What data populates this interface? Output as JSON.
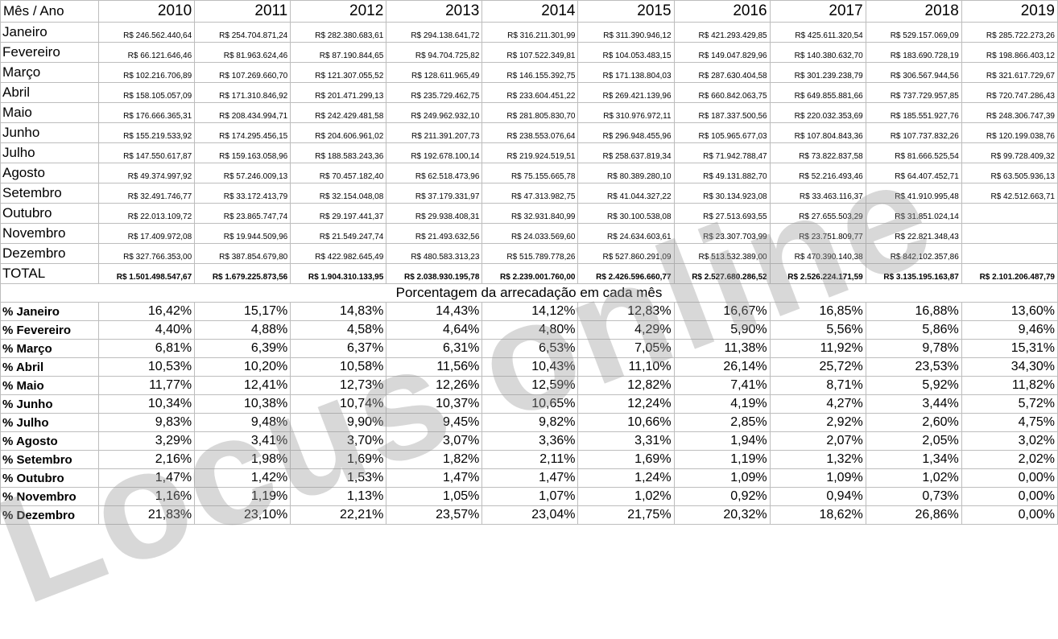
{
  "header_label": "Mês / Ano",
  "years": [
    "2010",
    "2011",
    "2012",
    "2013",
    "2014",
    "2015",
    "2016",
    "2017",
    "2018",
    "2019"
  ],
  "rows": [
    {
      "label": "Janeiro",
      "values": [
        "R$ 246.562.440,64",
        "R$ 254.704.871,24",
        "R$ 282.380.683,61",
        "R$ 294.138.641,72",
        "R$ 316.211.301,99",
        "R$ 311.390.946,12",
        "R$ 421.293.429,85",
        "R$ 425.611.320,54",
        "R$ 529.157.069,09",
        "R$ 285.722.273,26"
      ]
    },
    {
      "label": "Fevereiro",
      "values": [
        "R$ 66.121.646,46",
        "R$ 81.963.624,46",
        "R$ 87.190.844,65",
        "R$ 94.704.725,82",
        "R$ 107.522.349,81",
        "R$ 104.053.483,15",
        "R$ 149.047.829,96",
        "R$ 140.380.632,70",
        "R$ 183.690.728,19",
        "R$ 198.866.403,12"
      ]
    },
    {
      "label": "Março",
      "values": [
        "R$ 102.216.706,89",
        "R$ 107.269.660,70",
        "R$ 121.307.055,52",
        "R$ 128.611.965,49",
        "R$ 146.155.392,75",
        "R$ 171.138.804,03",
        "R$ 287.630.404,58",
        "R$ 301.239.238,79",
        "R$ 306.567.944,56",
        "R$ 321.617.729,67"
      ]
    },
    {
      "label": "Abril",
      "values": [
        "R$ 158.105.057,09",
        "R$ 171.310.846,92",
        "R$ 201.471.299,13",
        "R$ 235.729.462,75",
        "R$ 233.604.451,22",
        "R$ 269.421.139,96",
        "R$ 660.842.063,75",
        "R$ 649.855.881,66",
        "R$ 737.729.957,85",
        "R$ 720.747.286,43"
      ]
    },
    {
      "label": "Maio",
      "values": [
        "R$ 176.666.365,31",
        "R$ 208.434.994,71",
        "R$ 242.429.481,58",
        "R$ 249.962.932,10",
        "R$ 281.805.830,70",
        "R$ 310.976.972,11",
        "R$ 187.337.500,56",
        "R$ 220.032.353,69",
        "R$ 185.551.927,76",
        "R$ 248.306.747,39"
      ]
    },
    {
      "label": "Junho",
      "values": [
        "R$ 155.219.533,92",
        "R$ 174.295.456,15",
        "R$ 204.606.961,02",
        "R$ 211.391.207,73",
        "R$ 238.553.076,64",
        "R$ 296.948.455,96",
        "R$ 105.965.677,03",
        "R$ 107.804.843,36",
        "R$ 107.737.832,26",
        "R$ 120.199.038,76"
      ]
    },
    {
      "label": "Julho",
      "values": [
        "R$ 147.550.617,87",
        "R$ 159.163.058,96",
        "R$ 188.583.243,36",
        "R$ 192.678.100,14",
        "R$ 219.924.519,51",
        "R$ 258.637.819,34",
        "R$ 71.942.788,47",
        "R$ 73.822.837,58",
        "R$ 81.666.525,54",
        "R$ 99.728.409,32"
      ]
    },
    {
      "label": "Agosto",
      "values": [
        "R$ 49.374.997,92",
        "R$ 57.246.009,13",
        "R$ 70.457.182,40",
        "R$ 62.518.473,96",
        "R$ 75.155.665,78",
        "R$ 80.389.280,10",
        "R$ 49.131.882,70",
        "R$ 52.216.493,46",
        "R$ 64.407.452,71",
        "R$ 63.505.936,13"
      ]
    },
    {
      "label": "Setembro",
      "values": [
        "R$ 32.491.746,77",
        "R$ 33.172.413,79",
        "R$ 32.154.048,08",
        "R$ 37.179.331,97",
        "R$ 47.313.982,75",
        "R$ 41.044.327,22",
        "R$ 30.134.923,08",
        "R$ 33.463.116,37",
        "R$ 41.910.995,48",
        "R$ 42.512.663,71"
      ]
    },
    {
      "label": "Outubro",
      "values": [
        "R$ 22.013.109,72",
        "R$ 23.865.747,74",
        "R$ 29.197.441,37",
        "R$ 29.938.408,31",
        "R$ 32.931.840,99",
        "R$ 30.100.538,08",
        "R$ 27.513.693,55",
        "R$ 27.655.503,29",
        "R$ 31.851.024,14",
        ""
      ]
    },
    {
      "label": "Novembro",
      "values": [
        "R$ 17.409.972,08",
        "R$ 19.944.509,96",
        "R$ 21.549.247,74",
        "R$ 21.493.632,56",
        "R$ 24.033.569,60",
        "R$ 24.634.603,61",
        "R$ 23.307.703,99",
        "R$ 23.751.809,77",
        "R$ 22.821.348,43",
        ""
      ]
    },
    {
      "label": "Dezembro",
      "values": [
        "R$ 327.766.353,00",
        "R$ 387.854.679,80",
        "R$ 422.982.645,49",
        "R$ 480.583.313,23",
        "R$ 515.789.778,26",
        "R$ 527.860.291,09",
        "R$ 513.532.389,00",
        "R$ 470.390.140,38",
        "R$ 842.102.357,86",
        ""
      ]
    }
  ],
  "total": {
    "label": "TOTAL",
    "values": [
      "R$ 1.501.498.547,67",
      "R$ 1.679.225.873,56",
      "R$ 1.904.310.133,95",
      "R$ 2.038.930.195,78",
      "R$ 2.239.001.760,00",
      "R$ 2.426.596.660,77",
      "R$ 2.527.680.286,52",
      "R$ 2.526.224.171,59",
      "R$ 3.135.195.163,87",
      "R$ 2.101.206.487,79"
    ]
  },
  "percent_title": "Porcentagem da arrecadação em cada mês",
  "percent_rows": [
    {
      "label": "% Janeiro",
      "values": [
        "16,42%",
        "15,17%",
        "14,83%",
        "14,43%",
        "14,12%",
        "12,83%",
        "16,67%",
        "16,85%",
        "16,88%",
        "13,60%"
      ]
    },
    {
      "label": "% Fevereiro",
      "values": [
        "4,40%",
        "4,88%",
        "4,58%",
        "4,64%",
        "4,80%",
        "4,29%",
        "5,90%",
        "5,56%",
        "5,86%",
        "9,46%"
      ]
    },
    {
      "label": "% Março",
      "values": [
        "6,81%",
        "6,39%",
        "6,37%",
        "6,31%",
        "6,53%",
        "7,05%",
        "11,38%",
        "11,92%",
        "9,78%",
        "15,31%"
      ]
    },
    {
      "label": "% Abril",
      "values": [
        "10,53%",
        "10,20%",
        "10,58%",
        "11,56%",
        "10,43%",
        "11,10%",
        "26,14%",
        "25,72%",
        "23,53%",
        "34,30%"
      ]
    },
    {
      "label": "% Maio",
      "values": [
        "11,77%",
        "12,41%",
        "12,73%",
        "12,26%",
        "12,59%",
        "12,82%",
        "7,41%",
        "8,71%",
        "5,92%",
        "11,82%"
      ]
    },
    {
      "label": "% Junho",
      "values": [
        "10,34%",
        "10,38%",
        "10,74%",
        "10,37%",
        "10,65%",
        "12,24%",
        "4,19%",
        "4,27%",
        "3,44%",
        "5,72%"
      ]
    },
    {
      "label": "% Julho",
      "values": [
        "9,83%",
        "9,48%",
        "9,90%",
        "9,45%",
        "9,82%",
        "10,66%",
        "2,85%",
        "2,92%",
        "2,60%",
        "4,75%"
      ]
    },
    {
      "label": "% Agosto",
      "values": [
        "3,29%",
        "3,41%",
        "3,70%",
        "3,07%",
        "3,36%",
        "3,31%",
        "1,94%",
        "2,07%",
        "2,05%",
        "3,02%"
      ]
    },
    {
      "label": "% Setembro",
      "values": [
        "2,16%",
        "1,98%",
        "1,69%",
        "1,82%",
        "2,11%",
        "1,69%",
        "1,19%",
        "1,32%",
        "1,34%",
        "2,02%"
      ]
    },
    {
      "label": "% Outubro",
      "values": [
        "1,47%",
        "1,42%",
        "1,53%",
        "1,47%",
        "1,47%",
        "1,24%",
        "1,09%",
        "1,09%",
        "1,02%",
        "0,00%"
      ]
    },
    {
      "label": "% Novembro",
      "values": [
        "1,16%",
        "1,19%",
        "1,13%",
        "1,05%",
        "1,07%",
        "1,02%",
        "0,92%",
        "0,94%",
        "0,73%",
        "0,00%"
      ]
    },
    {
      "label": "% Dezembro",
      "values": [
        "21,83%",
        "23,10%",
        "22,21%",
        "23,57%",
        "23,04%",
        "21,75%",
        "20,32%",
        "18,62%",
        "26,86%",
        "0,00%"
      ]
    }
  ],
  "watermark": "Locus online"
}
